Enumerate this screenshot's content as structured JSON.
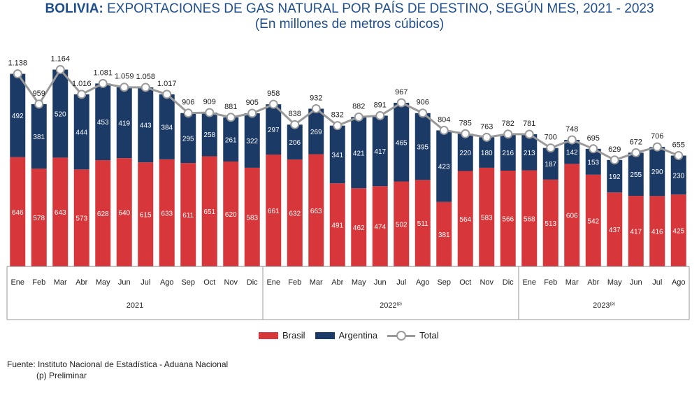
{
  "title_bold": "BOLIVIA:",
  "title_rest": " EXPORTACIONES DE GAS NATURAL POR PAÍS DE DESTINO, SEGÚN MES, 2021 - 2023",
  "subtitle": "(En millones de metros cúbicos)",
  "source": "Fuente: Instituto Nacional de Estadística - Aduana Nacional",
  "note": "(p) Preliminar",
  "colors": {
    "brasil": "#d7373a",
    "argentina": "#1b3a66",
    "total": "#9a9a9a",
    "title": "#1f4e8c"
  },
  "chart_data": {
    "type": "bar",
    "stacked": true,
    "categories": [
      "Ene",
      "Feb",
      "Mar",
      "Abr",
      "May",
      "Jun",
      "Jul",
      "Ago",
      "Sep",
      "Oct",
      "Nov",
      "Dic",
      "Ene",
      "Feb",
      "Mar",
      "Abr",
      "May",
      "Jun",
      "Jul",
      "Ago",
      "Sep",
      "Oct",
      "Nov",
      "Dic",
      "Ene",
      "Feb",
      "Mar",
      "Abr",
      "May",
      "Jun",
      "Jul",
      "Ago"
    ],
    "groups": [
      {
        "label": "2021",
        "count": 12
      },
      {
        "label": "2022",
        "sup": "(p)",
        "count": 12
      },
      {
        "label": "2023",
        "sup": "(p)",
        "count": 8
      }
    ],
    "series": [
      {
        "name": "Brasil",
        "values": [
          646,
          578,
          643,
          573,
          628,
          640,
          615,
          633,
          611,
          651,
          620,
          583,
          661,
          632,
          663,
          491,
          462,
          474,
          502,
          511,
          381,
          564,
          583,
          566,
          568,
          513,
          606,
          542,
          437,
          417,
          416,
          425
        ]
      },
      {
        "name": "Argentina",
        "values": [
          492,
          381,
          520,
          444,
          453,
          419,
          443,
          384,
          295,
          258,
          261,
          322,
          297,
          206,
          269,
          341,
          421,
          417,
          465,
          395,
          423,
          220,
          180,
          216,
          213,
          187,
          142,
          153,
          192,
          255,
          290,
          230
        ]
      }
    ],
    "total": {
      "name": "Total",
      "type": "line",
      "values": [
        "1.138",
        "959",
        "1.164",
        "1.016",
        "1.081",
        "1.059",
        "1.058",
        "1.017",
        "906",
        "909",
        "881",
        "905",
        "958",
        "838",
        "932",
        "832",
        "882",
        "891",
        "967",
        "906",
        "804",
        "785",
        "763",
        "782",
        "781",
        "700",
        "748",
        "695",
        "629",
        "672",
        "706",
        "655"
      ]
    },
    "legend": [
      "Brasil",
      "Argentina",
      "Total"
    ],
    "legend_position": "bottom",
    "grid": false
  }
}
